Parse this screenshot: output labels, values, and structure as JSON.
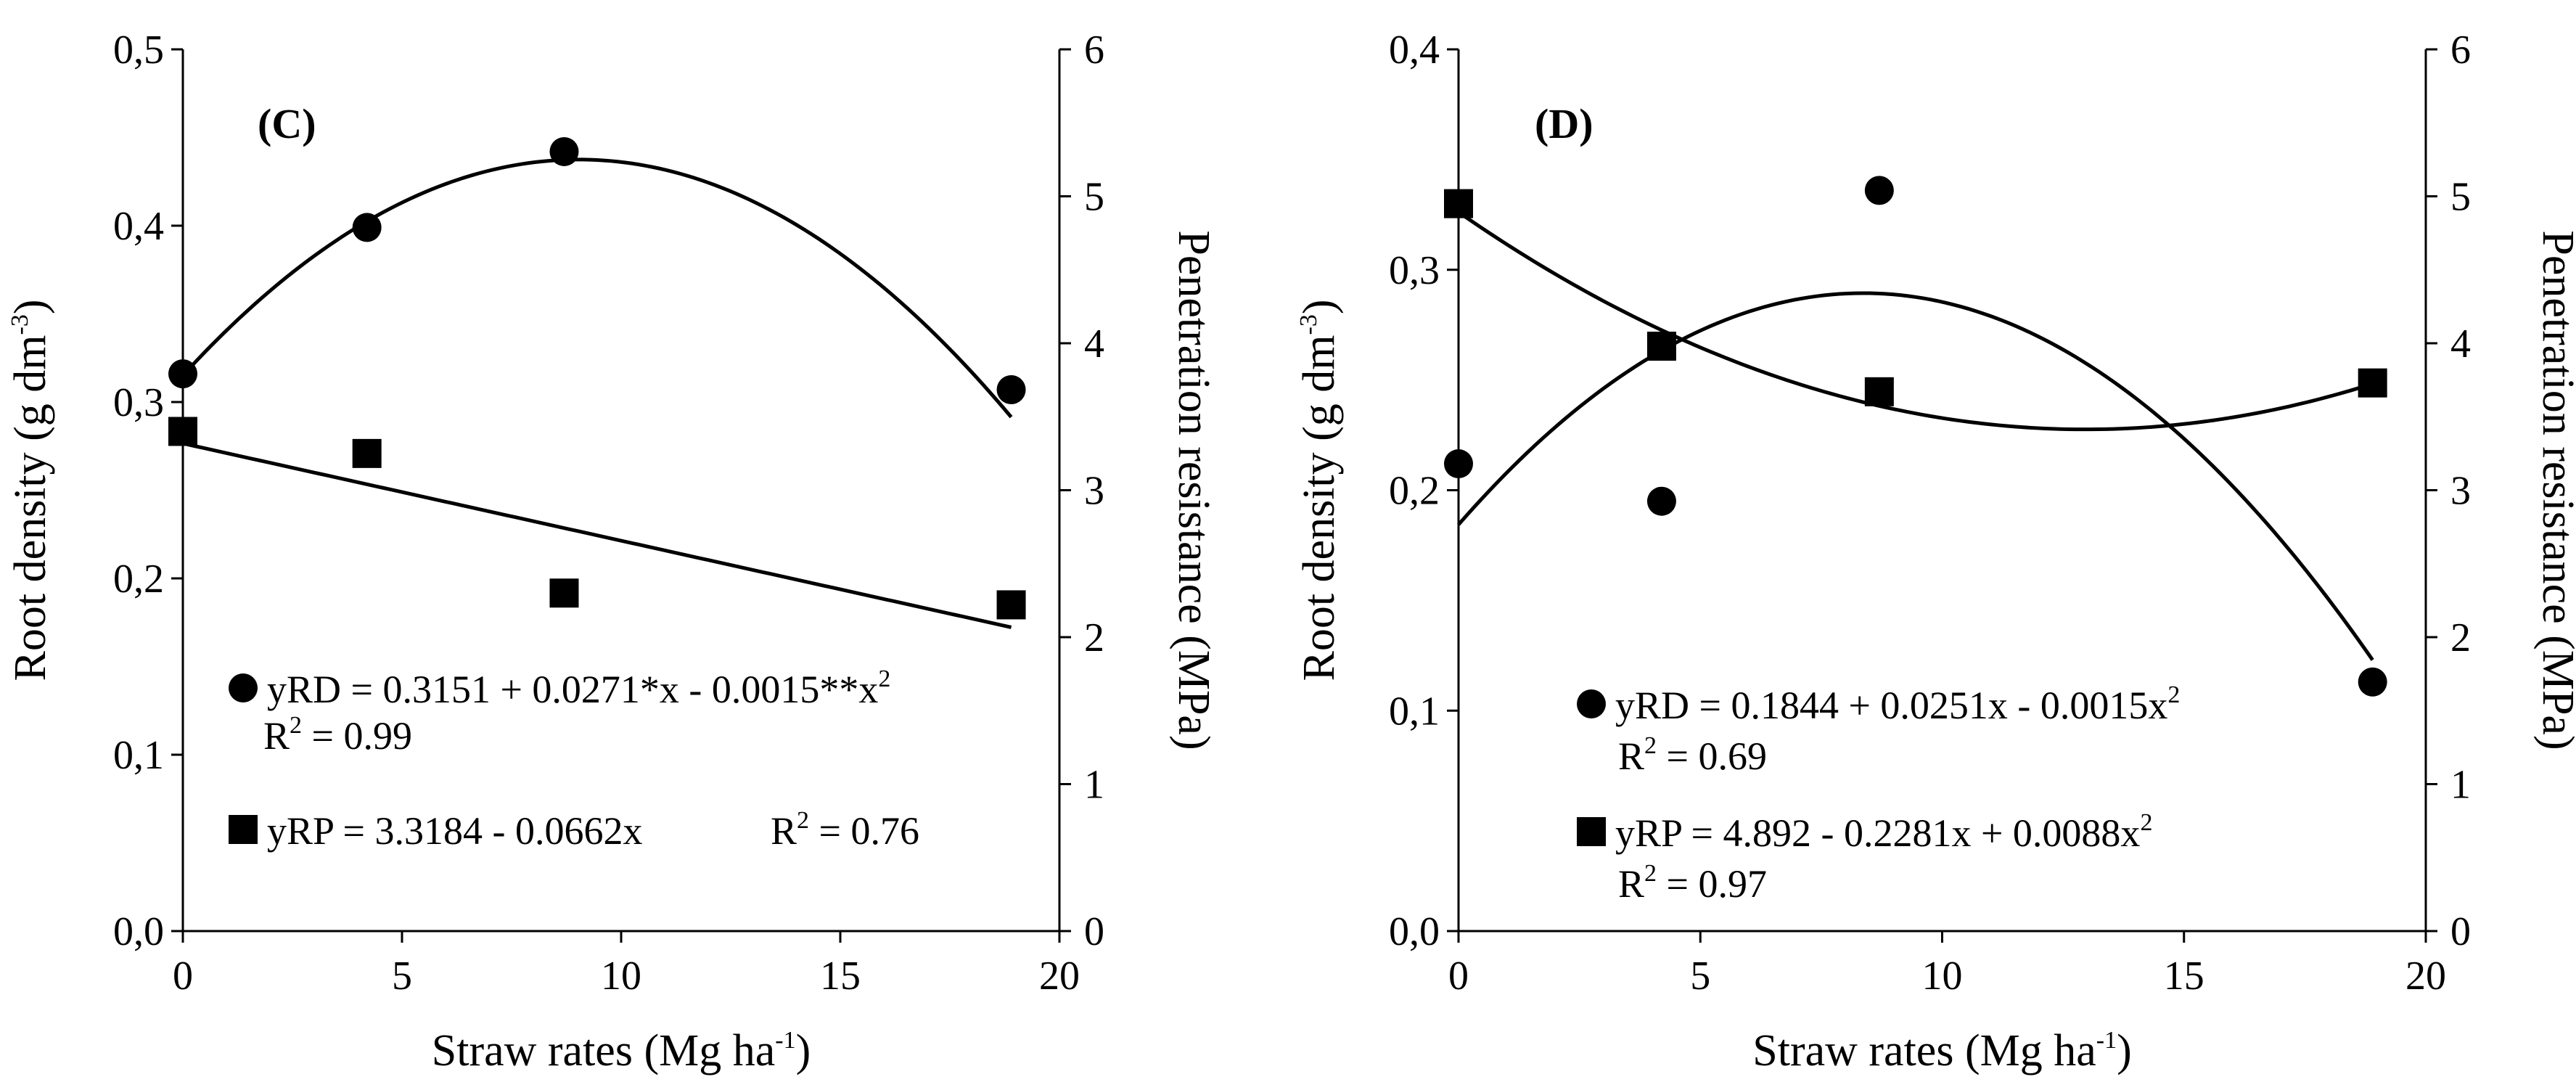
{
  "chart_data": [
    {
      "type": "scatter",
      "panel_label": "(C)",
      "xlabel": "Straw rates (Mg ha",
      "xlabel_sup": "-1",
      "xlabel_end": ")",
      "ylabel_left": "Root density (g dm",
      "ylabel_left_sup": "-3",
      "ylabel_left_end": ")",
      "ylabel_right": "Penetration resistance (MPa)",
      "xlim": [
        0,
        20
      ],
      "ylim_left": [
        0,
        0.5
      ],
      "ylim_right": [
        0,
        6
      ],
      "x_ticks": [
        "0",
        "5",
        "10",
        "15",
        "20"
      ],
      "y_left_ticks": [
        "0,0",
        "0,1",
        "0,2",
        "0,3",
        "0,4",
        "0,5"
      ],
      "y_right_ticks": [
        "0",
        "1",
        "2",
        "3",
        "4",
        "5",
        "6"
      ],
      "series": [
        {
          "name": "yRD",
          "marker": "circle",
          "axis": "left",
          "x": [
            0,
            4.2,
            8.7,
            18.9
          ],
          "y": [
            0.316,
            0.399,
            0.442,
            0.307
          ],
          "fit": {
            "a": 0.3151,
            "b": 0.0271,
            "c": -0.0015
          }
        },
        {
          "name": "yRP",
          "marker": "square",
          "axis": "right",
          "x": [
            0,
            4.2,
            8.7,
            18.9
          ],
          "y": [
            3.4,
            3.25,
            2.3,
            2.22
          ],
          "fit": {
            "a": 3.3184,
            "b": -0.0662,
            "c": 0
          }
        }
      ],
      "legend": [
        {
          "text": "yRD = 0.3151 + 0.0271*x - 0.0015**x",
          "sup": "2",
          "r2_label": "R",
          "r2_sup": "2",
          "r2_value": " = 0.99"
        },
        {
          "text": "yRP = 3.3184 - 0.0662x",
          "r2_label": "R",
          "r2_sup": "2",
          "r2_value": " = 0.76"
        }
      ]
    },
    {
      "type": "scatter",
      "panel_label": "(D)",
      "xlabel": "Straw rates (Mg ha",
      "xlabel_sup": "-1",
      "xlabel_end": ")",
      "ylabel_left": "Root density (g dm",
      "ylabel_left_sup": "-3",
      "ylabel_left_end": ")",
      "ylabel_right": "Penetration resistance (MPa)",
      "xlim": [
        0,
        20
      ],
      "ylim_left": [
        0,
        0.4
      ],
      "ylim_right": [
        0,
        6
      ],
      "x_ticks": [
        "0",
        "5",
        "10",
        "15",
        "20"
      ],
      "y_left_ticks": [
        "0,0",
        "0,1",
        "0,2",
        "0,3",
        "0,4"
      ],
      "y_right_ticks": [
        "0",
        "1",
        "2",
        "3",
        "4",
        "5",
        "6"
      ],
      "series": [
        {
          "name": "yRD",
          "marker": "circle",
          "axis": "left",
          "x": [
            0,
            4.2,
            8.7,
            18.9
          ],
          "y": [
            0.212,
            0.195,
            0.336,
            0.113
          ],
          "fit": {
            "a": 0.1844,
            "b": 0.0251,
            "c": -0.0015
          }
        },
        {
          "name": "yRP",
          "marker": "square",
          "axis": "right",
          "x": [
            0,
            4.2,
            8.7,
            18.9
          ],
          "y": [
            4.95,
            3.98,
            3.67,
            3.73
          ],
          "fit": {
            "a": 4.892,
            "b": -0.2281,
            "c": 0.0088
          }
        }
      ],
      "legend": [
        {
          "text": "yRD = 0.1844 + 0.0251x - 0.0015x",
          "sup": "2",
          "r2_label": "R",
          "r2_sup": "2",
          "r2_value": " = 0.69"
        },
        {
          "text": "yRP = 4.892 - 0.2281x + 0.0088x",
          "sup": "2",
          "r2_label": "R",
          "r2_sup": "2",
          "r2_value": " = 0.97"
        }
      ]
    }
  ]
}
